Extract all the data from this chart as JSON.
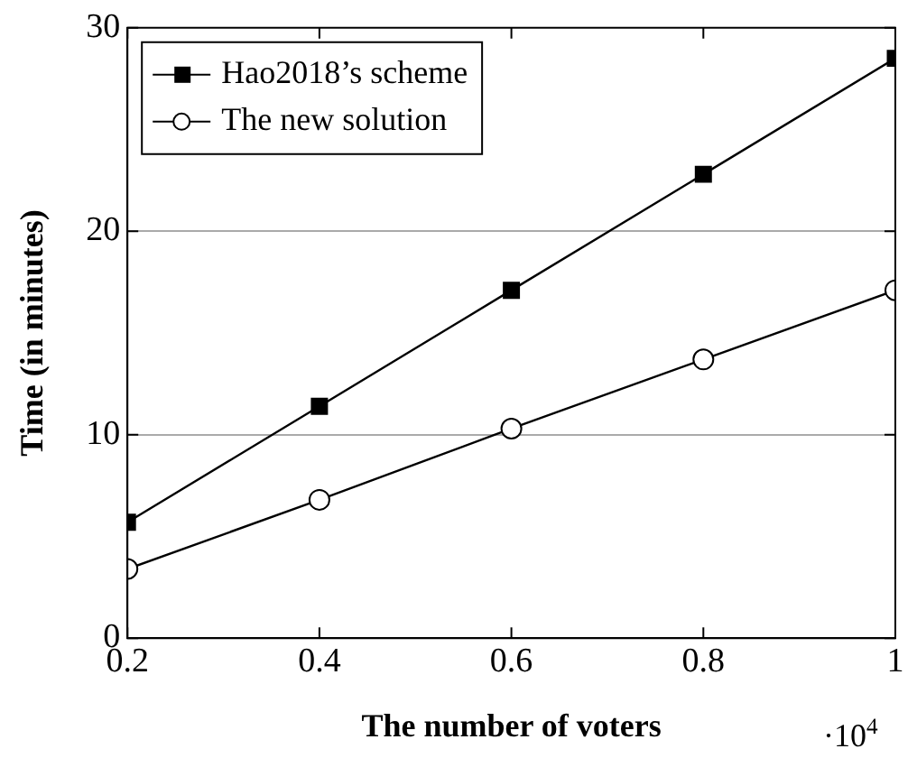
{
  "chart_data": {
    "type": "line",
    "xlabel": "The number of voters",
    "ylabel": "Time (in minutes)",
    "x": [
      0.2,
      0.4,
      0.6,
      0.8,
      1
    ],
    "series": [
      {
        "name": "Hao2018’s scheme",
        "color": "#000000",
        "marker": "square",
        "values": [
          5.7,
          11.4,
          17.1,
          22.8,
          28.5
        ]
      },
      {
        "name": "The new solution",
        "color": "#000000",
        "marker": "circle",
        "values": [
          3.4,
          6.8,
          10.3,
          13.7,
          17.1
        ]
      }
    ],
    "xlim": [
      0.2,
      1
    ],
    "xticks": [
      0.2,
      0.4,
      0.6,
      0.8,
      1
    ],
    "ylim": [
      0,
      30
    ],
    "yticks": [
      0,
      10,
      20,
      30
    ],
    "grid": "y",
    "legend": "top left",
    "line_style": "solid",
    "annotations": [
      "·10$^{4}$"
    ]
  }
}
